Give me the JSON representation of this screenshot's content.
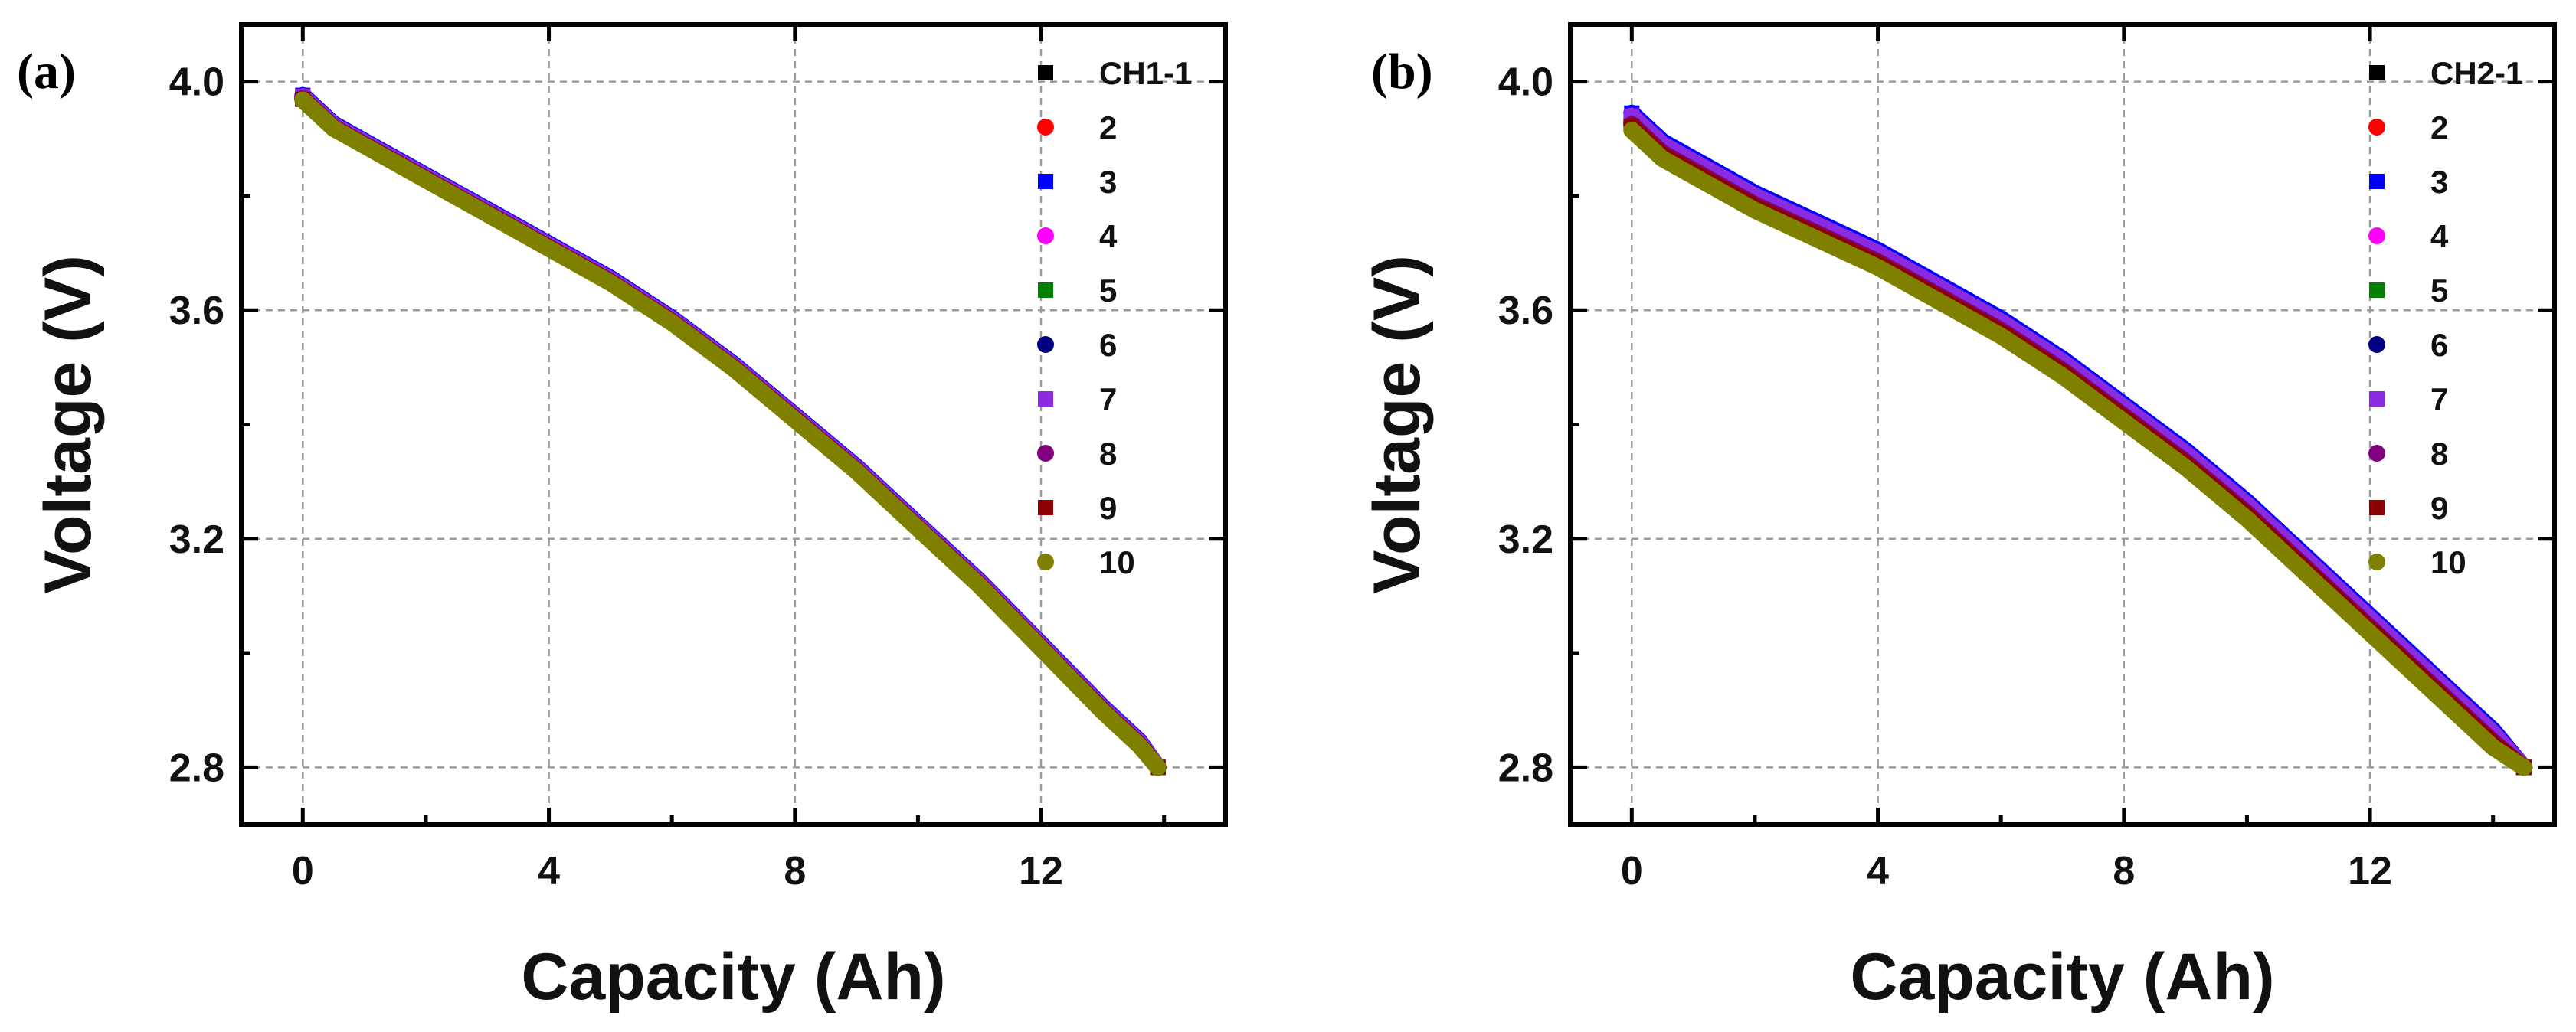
{
  "figure": {
    "type": "two-panel discharge voltage curves"
  },
  "chart_data": [
    {
      "type": "line",
      "panel_label": "(a)",
      "xlabel": "Capacity (Ah)",
      "ylabel": "Voltage (V)",
      "xlim": [
        -1,
        15
      ],
      "ylim": [
        2.7,
        4.1
      ],
      "xticks": [
        0,
        4,
        8,
        12
      ],
      "xtick_labels": [
        "0",
        "4",
        "8",
        "12"
      ],
      "yticks": [
        2.8,
        3.2,
        3.6,
        4.0
      ],
      "ytick_labels": [
        "2.8",
        "3.2",
        "3.6",
        "4.0"
      ],
      "grid": true,
      "legend_position": "top-right",
      "x": [
        0,
        0.5,
        1,
        2,
        3,
        4,
        5,
        6,
        7,
        8,
        9,
        10,
        11,
        12,
        13,
        13.6,
        13.9
      ],
      "series": [
        {
          "name": "CH1-1",
          "marker": "square",
          "color": "#000000",
          "values": [
            3.97,
            3.92,
            3.89,
            3.83,
            3.77,
            3.71,
            3.65,
            3.58,
            3.5,
            3.41,
            3.32,
            3.22,
            3.12,
            3.01,
            2.9,
            2.84,
            2.8
          ]
        },
        {
          "name": "2",
          "marker": "circle",
          "color": "#ff0000",
          "values": [
            3.975,
            3.925,
            3.895,
            3.835,
            3.775,
            3.715,
            3.655,
            3.585,
            3.505,
            3.415,
            3.325,
            3.225,
            3.125,
            3.015,
            2.905,
            2.845,
            2.8
          ]
        },
        {
          "name": "3",
          "marker": "square",
          "color": "#0000ff",
          "values": [
            3.976,
            3.926,
            3.896,
            3.836,
            3.776,
            3.716,
            3.656,
            3.586,
            3.506,
            3.416,
            3.326,
            3.226,
            3.126,
            3.016,
            2.906,
            2.846,
            2.8
          ]
        },
        {
          "name": "4",
          "marker": "circle",
          "color": "#ff00ff",
          "values": [
            3.973,
            3.923,
            3.893,
            3.833,
            3.773,
            3.713,
            3.653,
            3.583,
            3.503,
            3.413,
            3.323,
            3.223,
            3.123,
            3.013,
            2.903,
            2.843,
            2.8
          ]
        },
        {
          "name": "5",
          "marker": "square",
          "color": "#008000",
          "values": [
            3.972,
            3.922,
            3.892,
            3.832,
            3.772,
            3.712,
            3.652,
            3.582,
            3.502,
            3.412,
            3.322,
            3.222,
            3.122,
            3.012,
            2.902,
            2.842,
            2.8
          ]
        },
        {
          "name": "6",
          "marker": "circle",
          "color": "#000080",
          "values": [
            3.971,
            3.921,
            3.891,
            3.831,
            3.771,
            3.711,
            3.651,
            3.581,
            3.501,
            3.411,
            3.321,
            3.221,
            3.121,
            3.011,
            2.901,
            2.841,
            2.8
          ]
        },
        {
          "name": "7",
          "marker": "square",
          "color": "#8a2be2",
          "values": [
            3.974,
            3.924,
            3.894,
            3.834,
            3.774,
            3.714,
            3.654,
            3.584,
            3.504,
            3.414,
            3.324,
            3.224,
            3.124,
            3.014,
            2.904,
            2.844,
            2.8
          ]
        },
        {
          "name": "8",
          "marker": "circle",
          "color": "#800080",
          "values": [
            3.97,
            3.92,
            3.89,
            3.83,
            3.77,
            3.71,
            3.65,
            3.58,
            3.5,
            3.41,
            3.32,
            3.22,
            3.12,
            3.01,
            2.9,
            2.84,
            2.8
          ]
        },
        {
          "name": "9",
          "marker": "square",
          "color": "#8b0000",
          "values": [
            3.969,
            3.919,
            3.889,
            3.829,
            3.769,
            3.709,
            3.649,
            3.579,
            3.499,
            3.409,
            3.319,
            3.219,
            3.119,
            3.009,
            2.899,
            2.839,
            2.8
          ]
        },
        {
          "name": "10",
          "marker": "circle",
          "color": "#808000",
          "values": [
            3.968,
            3.918,
            3.888,
            3.828,
            3.768,
            3.708,
            3.648,
            3.578,
            3.498,
            3.408,
            3.318,
            3.218,
            3.118,
            3.008,
            2.898,
            2.838,
            2.8
          ]
        }
      ]
    },
    {
      "type": "line",
      "panel_label": "(b)",
      "xlabel": "Capacity (Ah)",
      "ylabel": "Voltage (V)",
      "xlim": [
        -1,
        15
      ],
      "ylim": [
        2.7,
        4.1
      ],
      "xticks": [
        0,
        4,
        8,
        12
      ],
      "xtick_labels": [
        "0",
        "4",
        "8",
        "12"
      ],
      "yticks": [
        2.8,
        3.2,
        3.6,
        4.0
      ],
      "ytick_labels": [
        "2.8",
        "3.2",
        "3.6",
        "4.0"
      ],
      "grid": true,
      "legend_position": "top-right",
      "x": [
        0,
        0.5,
        1,
        2,
        3,
        4,
        5,
        6,
        7,
        8,
        9,
        10,
        11,
        12,
        13,
        14,
        14.5
      ],
      "series": [
        {
          "name": "CH2-1",
          "marker": "square",
          "color": "#000000",
          "values": [
            3.93,
            3.88,
            3.85,
            3.79,
            3.74,
            3.69,
            3.63,
            3.57,
            3.5,
            3.42,
            3.34,
            3.25,
            3.15,
            3.05,
            2.95,
            2.85,
            2.8
          ]
        },
        {
          "name": "2",
          "marker": "circle",
          "color": "#ff0000",
          "values": [
            3.935,
            3.885,
            3.855,
            3.795,
            3.745,
            3.695,
            3.635,
            3.575,
            3.505,
            3.425,
            3.345,
            3.255,
            3.155,
            3.055,
            2.955,
            2.855,
            2.8
          ]
        },
        {
          "name": "3",
          "marker": "square",
          "color": "#0000ff",
          "values": [
            3.945,
            3.895,
            3.865,
            3.805,
            3.755,
            3.705,
            3.645,
            3.585,
            3.515,
            3.435,
            3.355,
            3.265,
            3.165,
            3.065,
            2.965,
            2.865,
            2.8
          ]
        },
        {
          "name": "4",
          "marker": "circle",
          "color": "#ff00ff",
          "values": [
            3.933,
            3.883,
            3.853,
            3.793,
            3.743,
            3.693,
            3.633,
            3.573,
            3.503,
            3.423,
            3.343,
            3.253,
            3.153,
            3.053,
            2.953,
            2.853,
            2.8
          ]
        },
        {
          "name": "5",
          "marker": "square",
          "color": "#008000",
          "values": [
            3.928,
            3.878,
            3.848,
            3.788,
            3.738,
            3.688,
            3.628,
            3.568,
            3.498,
            3.418,
            3.338,
            3.248,
            3.148,
            3.048,
            2.948,
            2.848,
            2.8
          ]
        },
        {
          "name": "6",
          "marker": "circle",
          "color": "#000080",
          "values": [
            3.927,
            3.877,
            3.847,
            3.787,
            3.737,
            3.687,
            3.627,
            3.567,
            3.497,
            3.417,
            3.337,
            3.247,
            3.147,
            3.047,
            2.947,
            2.847,
            2.8
          ]
        },
        {
          "name": "7",
          "marker": "square",
          "color": "#8a2be2",
          "values": [
            3.94,
            3.89,
            3.86,
            3.8,
            3.75,
            3.7,
            3.64,
            3.58,
            3.51,
            3.43,
            3.35,
            3.26,
            3.16,
            3.06,
            2.96,
            2.86,
            2.8
          ]
        },
        {
          "name": "8",
          "marker": "circle",
          "color": "#800080",
          "values": [
            3.925,
            3.875,
            3.845,
            3.785,
            3.735,
            3.685,
            3.625,
            3.565,
            3.495,
            3.415,
            3.335,
            3.245,
            3.145,
            3.045,
            2.945,
            2.845,
            2.8
          ]
        },
        {
          "name": "9",
          "marker": "square",
          "color": "#8b0000",
          "values": [
            3.922,
            3.872,
            3.842,
            3.782,
            3.732,
            3.682,
            3.622,
            3.562,
            3.492,
            3.412,
            3.332,
            3.242,
            3.142,
            3.042,
            2.942,
            2.842,
            2.8
          ]
        },
        {
          "name": "10",
          "marker": "circle",
          "color": "#808000",
          "values": [
            3.915,
            3.865,
            3.835,
            3.775,
            3.725,
            3.675,
            3.615,
            3.555,
            3.485,
            3.405,
            3.325,
            3.235,
            3.135,
            3.035,
            2.935,
            2.835,
            2.8
          ]
        }
      ]
    }
  ]
}
